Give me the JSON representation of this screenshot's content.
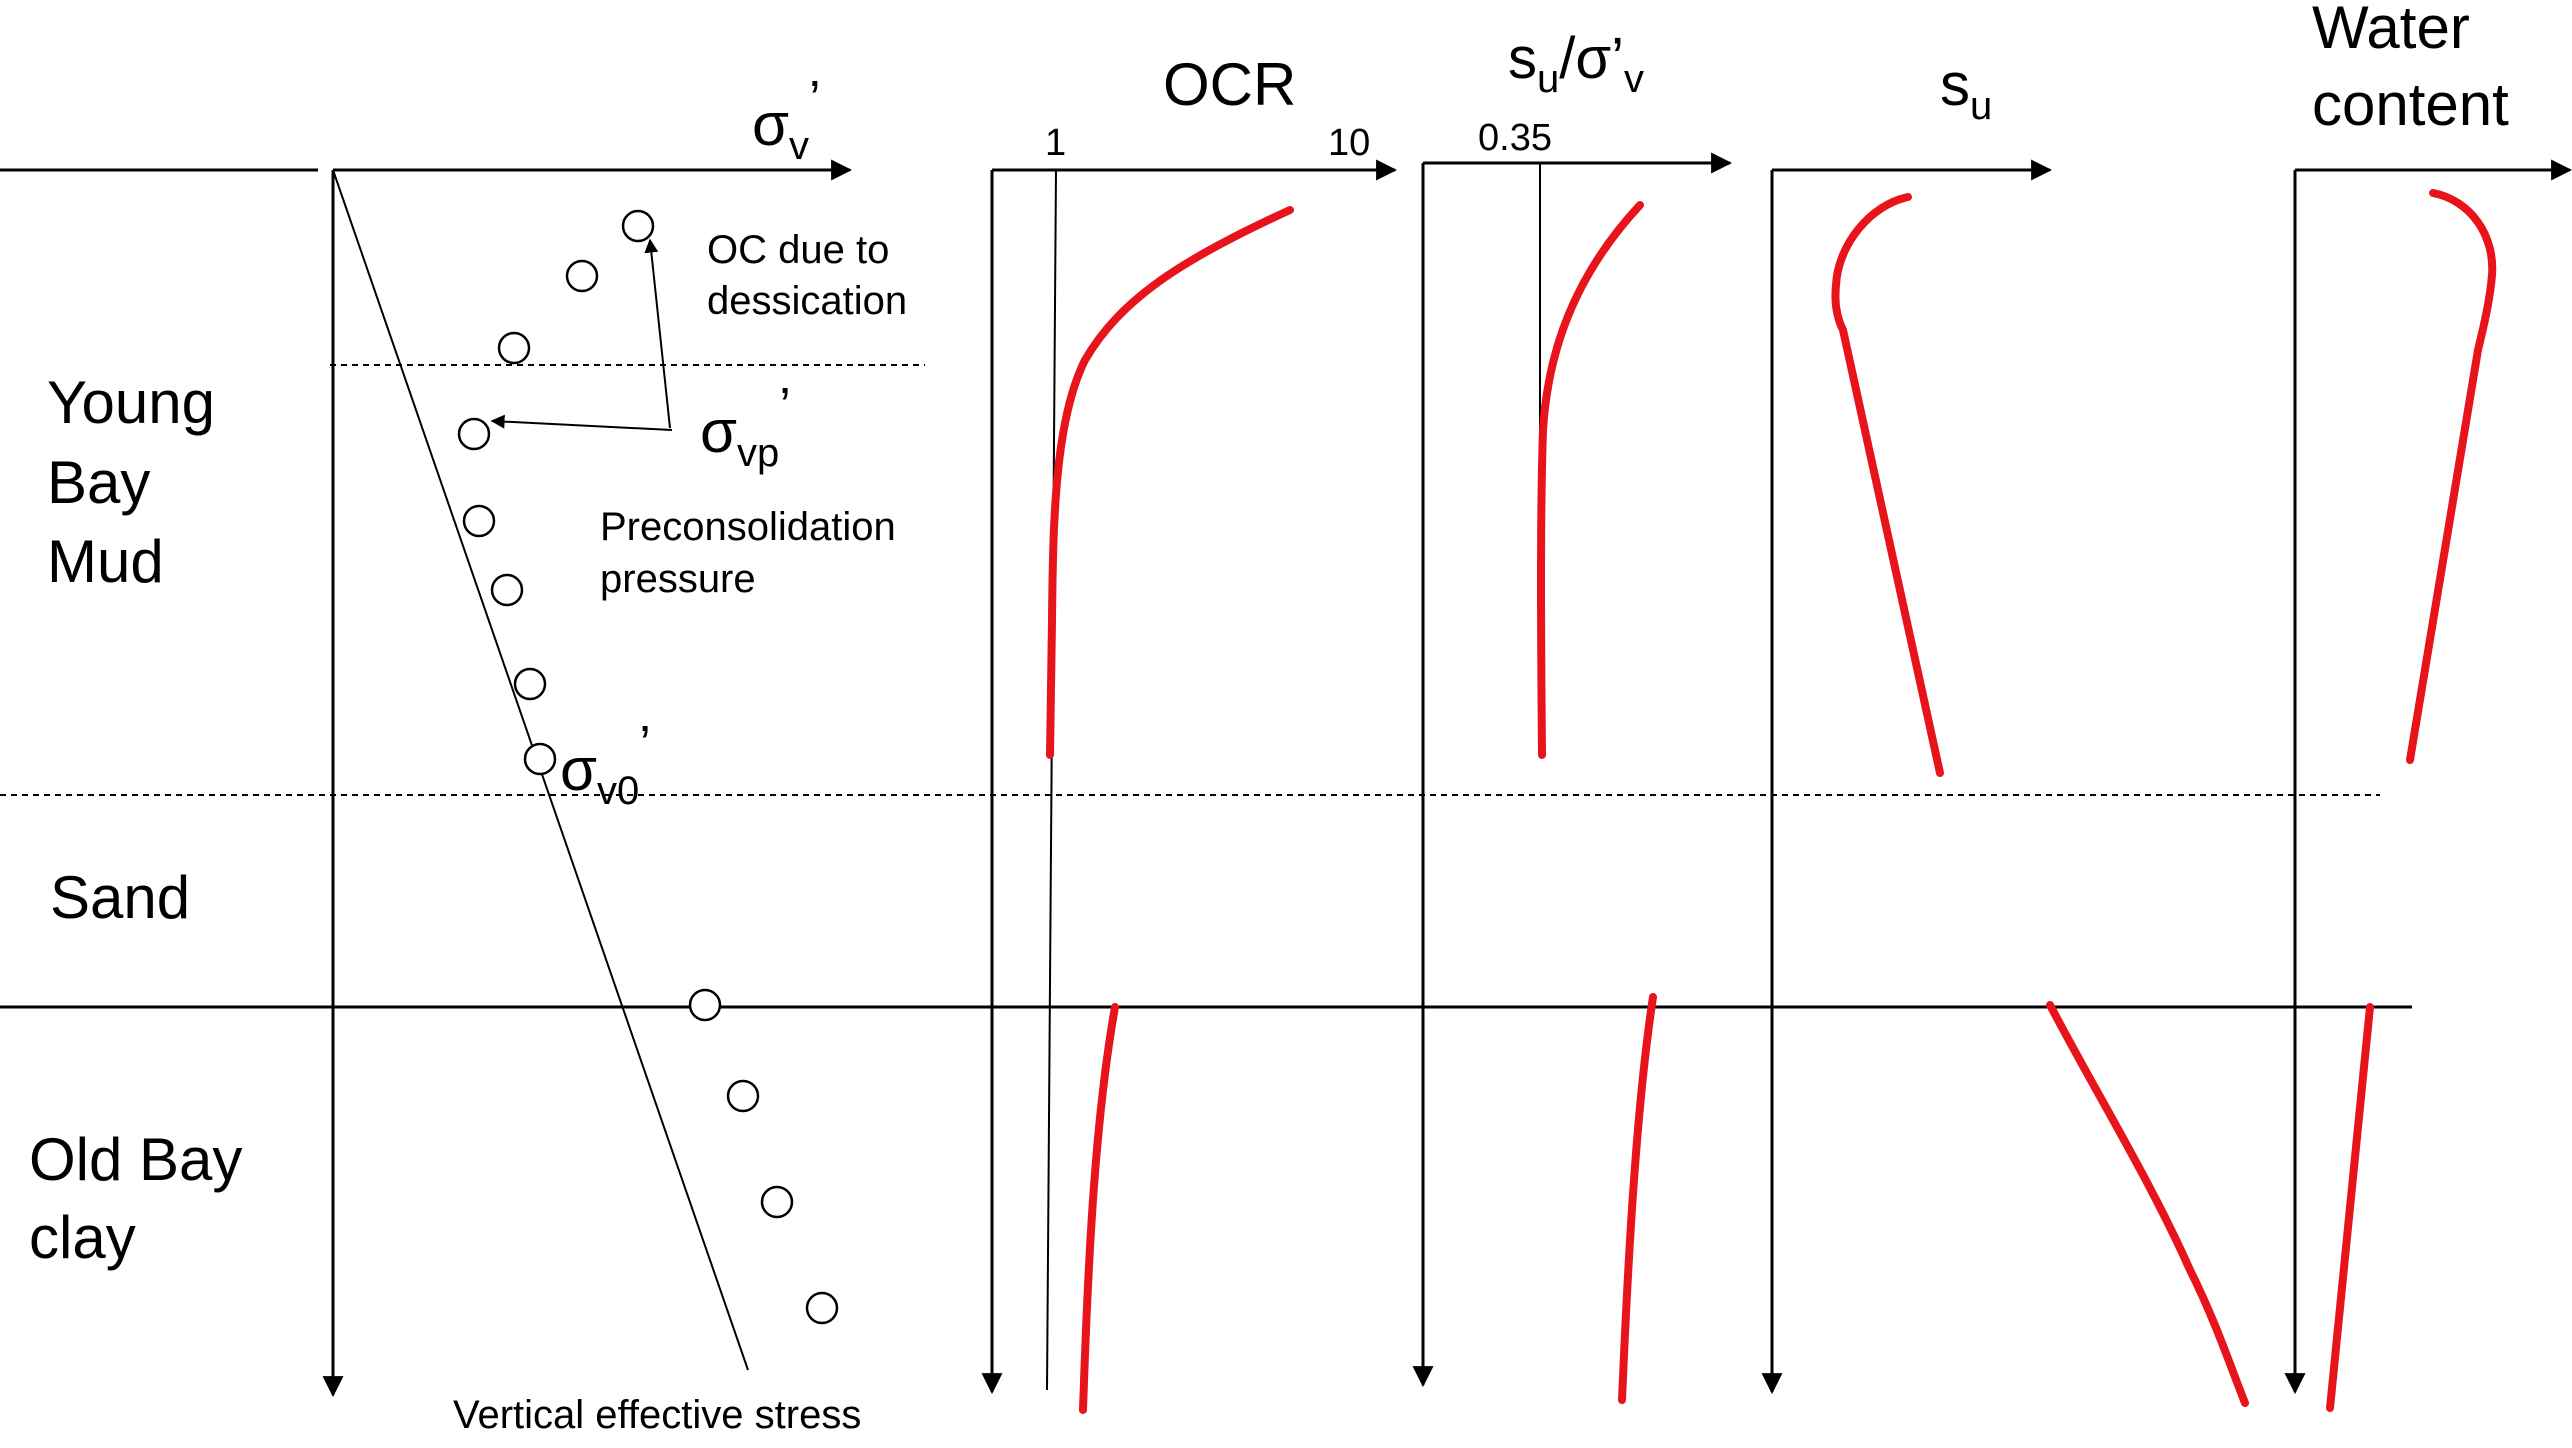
{
  "colors": {
    "curve": "#e8141b",
    "line": "#000000",
    "background": "#ffffff"
  },
  "layers": {
    "young_bay_mud_1": "Young",
    "young_bay_mud_2": "Bay",
    "young_bay_mud_3": "Mud",
    "sand": "Sand",
    "old_bay_clay_1": "Old Bay",
    "old_bay_clay_2": "clay"
  },
  "stress_plot": {
    "axis_symbol": "σ",
    "axis_sub": "v",
    "axis_prime": "’",
    "oc_note_1": "OC due to",
    "oc_note_2": "dessication",
    "sigma_vp_symbol": "σ",
    "sigma_vp_sub": "vp",
    "sigma_vp_prime": "’",
    "precon_1": "Preconsolidation",
    "precon_2": "pressure",
    "sigma_v0_symbol": "σ",
    "sigma_v0_sub": "v0",
    "sigma_v0_prime": "’",
    "bottom_label": "Vertical effective stress"
  },
  "ocr_plot": {
    "title": "OCR",
    "tick_1": "1",
    "tick_10": "10"
  },
  "ratio_plot": {
    "title_s": "s",
    "title_s_sub": "u",
    "title_slash": "/σ’",
    "title_v_sub": "v",
    "tick": "0.35"
  },
  "su_plot": {
    "title_s": "s",
    "title_sub": "u"
  },
  "water_plot": {
    "title_line1": "Water",
    "title_line2": "content"
  }
}
